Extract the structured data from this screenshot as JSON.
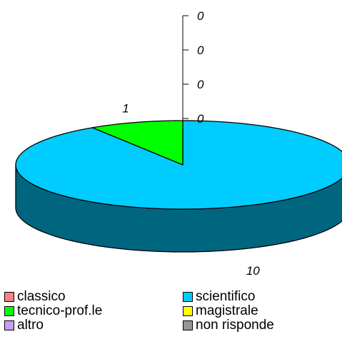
{
  "chart_data": {
    "type": "pie",
    "categories": [
      "classico",
      "scientifico",
      "tecnico-prof.le",
      "magistrale",
      "altro",
      "non risponde"
    ],
    "values": [
      0,
      10,
      1,
      0,
      0,
      0
    ],
    "data_labels": [
      "0",
      "10",
      "1",
      "0",
      "0",
      "0"
    ],
    "colors": [
      "#ff8080",
      "#00ccff",
      "#00ff00",
      "#ffff00",
      "#cc99ff",
      "#969696"
    ],
    "side_colors": [
      "#994d4d",
      "#006680",
      "#009900",
      "#999900",
      "#7a5c99",
      "#5a5a5a"
    ],
    "legend": {
      "placement": "bottom",
      "items": [
        {
          "label": "classico",
          "color": "#ff8080"
        },
        {
          "label": "scientifico",
          "color": "#00ccff"
        },
        {
          "label": "tecnico-prof.le",
          "color": "#00ff00"
        },
        {
          "label": "magistrale",
          "color": "#ffff00"
        },
        {
          "label": "altro",
          "color": "#cc99ff"
        },
        {
          "label": "non risponde",
          "color": "#969696"
        }
      ]
    },
    "style": "3d-pie"
  }
}
